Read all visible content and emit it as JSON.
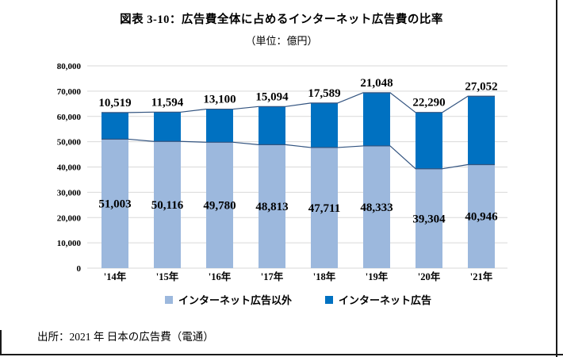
{
  "page": {
    "title": "図表 3-10：広告費全体に占めるインターネット広告費の比率",
    "subtitle": "（単位：億円）",
    "source": "出所：2021 年 日本の広告費（電通）"
  },
  "legend": {
    "items": [
      {
        "label": "インターネット広告以外",
        "color": "#9CB8DD"
      },
      {
        "label": "インターネット広告",
        "color": "#0071C1"
      }
    ]
  },
  "chart_data": {
    "type": "bar",
    "stacked": true,
    "title": "図表 3-10：広告費全体に占めるインターネット広告費の比率",
    "unit_label": "（単位：億円）",
    "categories": [
      "'14年",
      "'15年",
      "'16年",
      "'17年",
      "'18年",
      "'19年",
      "'20年",
      "'21年"
    ],
    "series": [
      {
        "name": "インターネット広告以外",
        "color": "#9CB8DD",
        "values": [
          51003,
          50116,
          49780,
          48813,
          47711,
          48333,
          39304,
          40946
        ]
      },
      {
        "name": "インターネット広告",
        "color": "#0071C1",
        "values": [
          10519,
          11594,
          13100,
          15094,
          17589,
          21048,
          22290,
          27052
        ]
      }
    ],
    "xlabel": "",
    "ylabel": "",
    "ylim": [
      0,
      80000
    ],
    "ytick_step": 10000,
    "ytick_labels": [
      "0",
      "10,000",
      "20,000",
      "30,000",
      "40,000",
      "50,000",
      "60,000",
      "70,000",
      "80,000"
    ],
    "grid": true,
    "gridline_color": "#D9D9D9",
    "boundary_line_color": "#335480",
    "label_color": "#000000",
    "legend_position": "bottom"
  }
}
